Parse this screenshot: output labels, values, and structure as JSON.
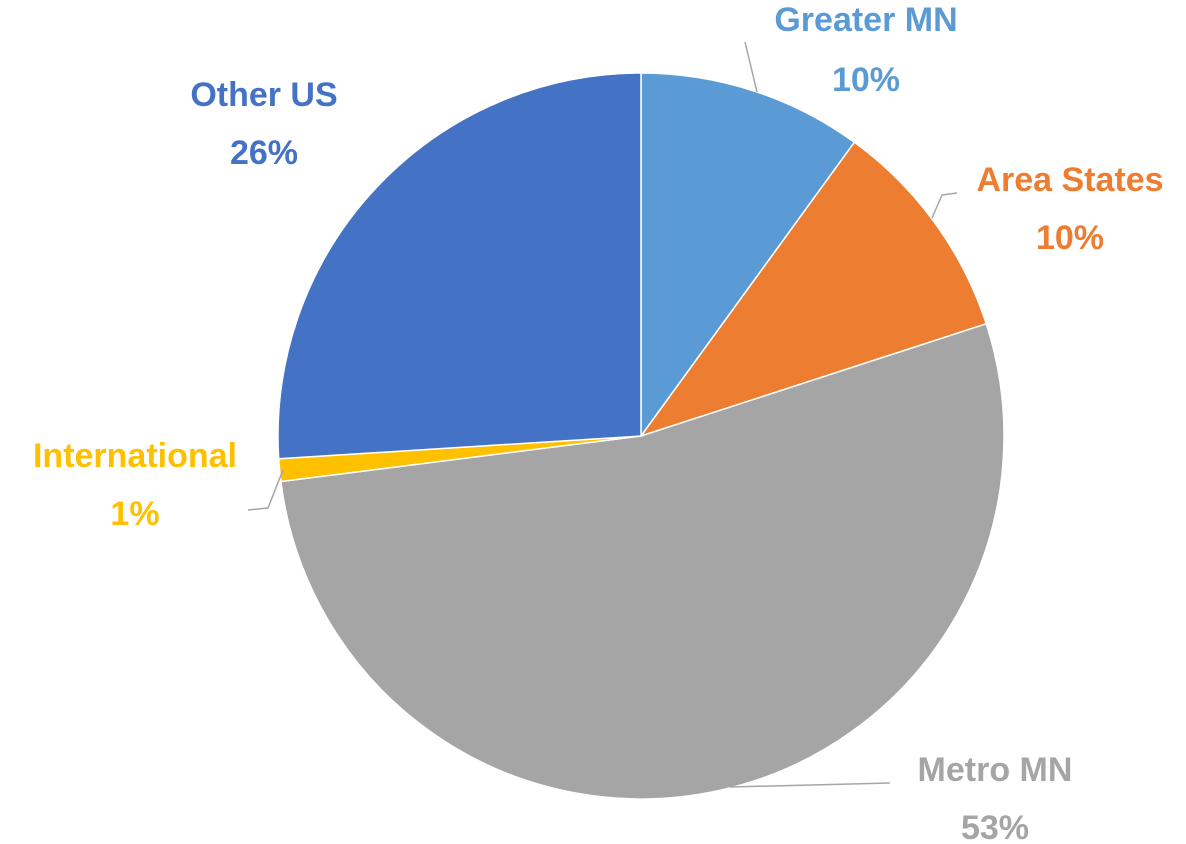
{
  "chart_data": {
    "type": "pie",
    "categories": [
      "Greater MN",
      "Area States",
      "Metro MN",
      "International",
      "Other US"
    ],
    "values": [
      10,
      10,
      53,
      1,
      26
    ],
    "value_labels": [
      "10%",
      "10%",
      "53%",
      "1%",
      "26%"
    ],
    "colors": [
      "#5b9bd5",
      "#ed7d31",
      "#a5a5a5",
      "#ffc000",
      "#4472c4"
    ]
  }
}
